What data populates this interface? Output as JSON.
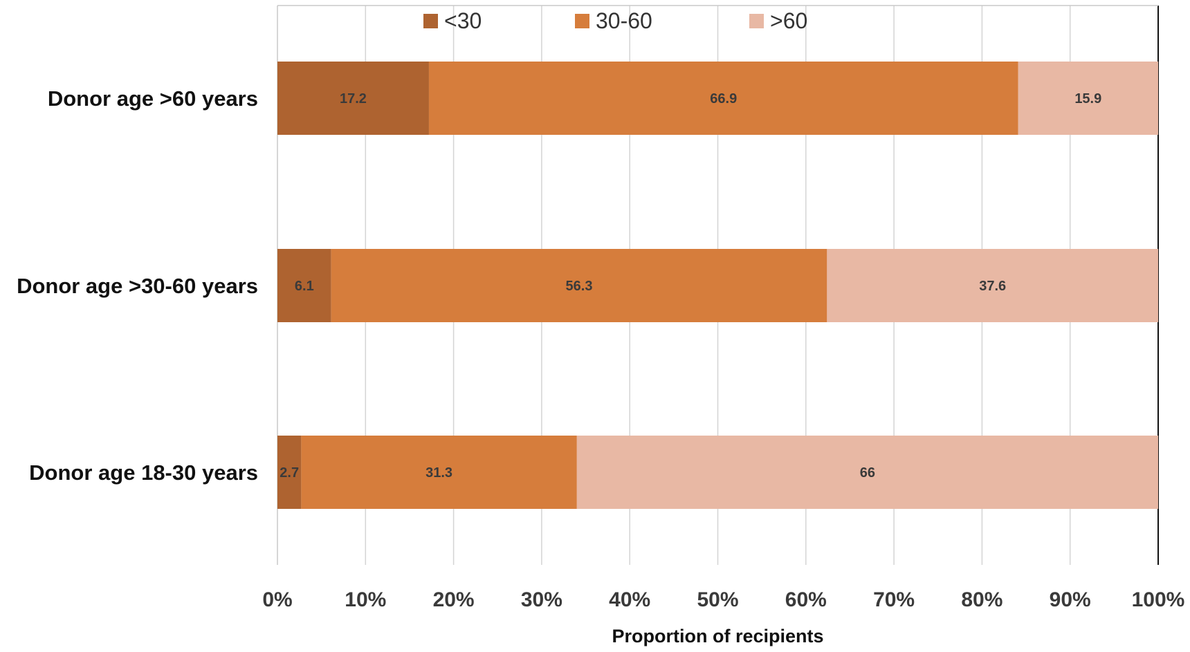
{
  "chart_data": {
    "type": "bar",
    "orientation": "horizontal",
    "stacked": true,
    "categories": [
      "Donor age >60 years",
      "Donor age >30-60 years",
      "Donor age 18-30 years"
    ],
    "series": [
      {
        "name": "<30",
        "values": [
          17.2,
          6.1,
          2.7
        ],
        "labels": [
          "17.2",
          "6.1",
          "2.7"
        ],
        "color": "#ae6330"
      },
      {
        "name": "30-60",
        "values": [
          66.9,
          56.3,
          31.3
        ],
        "labels": [
          "66.9",
          "56.3",
          "31.3"
        ],
        "color": "#d67d3c"
      },
      {
        "name": ">60",
        "values": [
          15.9,
          37.6,
          66
        ],
        "labels": [
          "15.9",
          "37.6",
          "66"
        ],
        "color": "#e8b8a4"
      }
    ],
    "xlabel": "Proportion of recipients",
    "xlim": [
      0,
      100
    ],
    "xticks": [
      "0%",
      "10%",
      "20%",
      "30%",
      "40%",
      "50%",
      "60%",
      "70%",
      "80%",
      "90%",
      "100%"
    ],
    "grid": "vertical",
    "legend_position": "top"
  }
}
